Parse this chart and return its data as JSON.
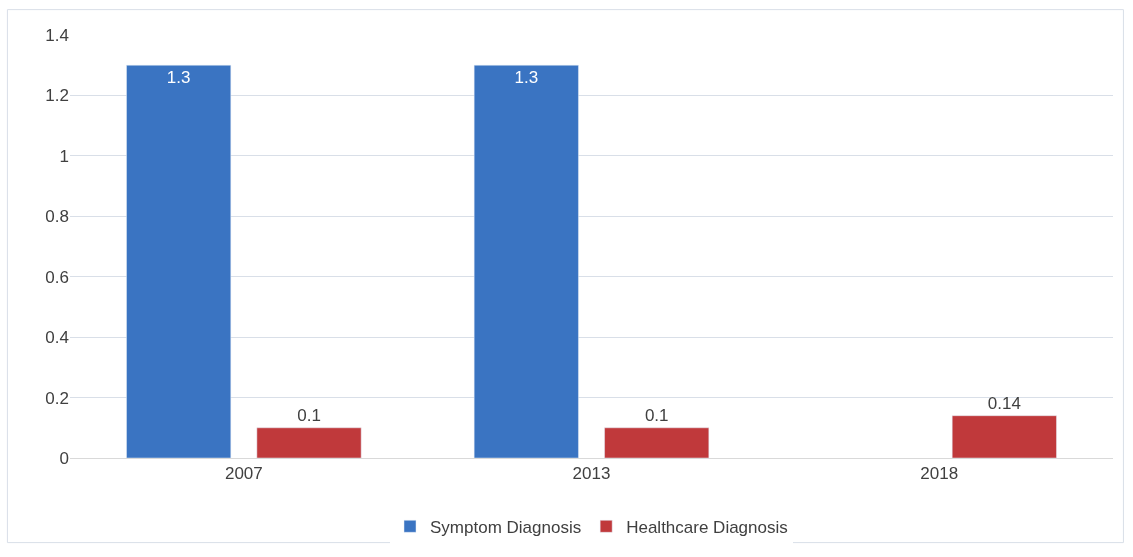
{
  "chart_data": {
    "type": "bar",
    "categories": [
      "2007",
      "2013",
      "2018"
    ],
    "series": [
      {
        "name": "Symptom Diagnosis",
        "color": "#3a74c2",
        "values": [
          1.3,
          1.3,
          null
        ]
      },
      {
        "name": "Healthcare Diagnosis",
        "color": "#c0393b",
        "values": [
          0.1,
          0.1,
          0.14
        ]
      }
    ],
    "ylim": [
      0,
      1.4
    ],
    "yticks": [
      0,
      0.2,
      0.4,
      0.6,
      0.8,
      1,
      1.2,
      1.4
    ],
    "grid": "y",
    "legend": "bottom",
    "data_labels": true
  }
}
